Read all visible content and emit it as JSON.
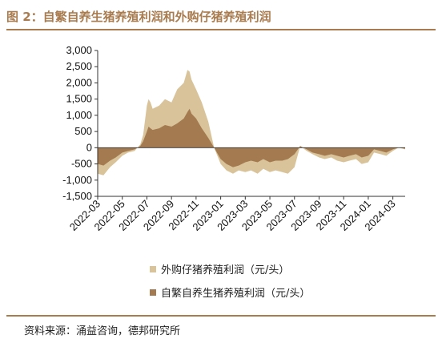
{
  "header": {
    "title": "图 2：自繁自养生猪养殖利润和外购仔猪养殖利润"
  },
  "footer": {
    "source": "资料来源：涌益咨询，德邦研究所"
  },
  "colors": {
    "accent": "#a97c50",
    "series_outsourced": "#d9c39a",
    "series_self": "#a47a50"
  },
  "chart_data": {
    "type": "area",
    "title": "",
    "xlabel": "",
    "ylabel": "",
    "ylim": [
      -1500,
      3000
    ],
    "yticks": [
      3000,
      2500,
      2000,
      1500,
      1000,
      500,
      0,
      -500,
      -1000,
      -1500
    ],
    "ytick_labels": [
      "3,000",
      "2,500",
      "2,000",
      "1,500",
      "1,000",
      "500",
      "0",
      "-500",
      "-1,000",
      "-1,500"
    ],
    "xlim": [
      "2022-03",
      "2024-04"
    ],
    "xticks": [
      "2022-03",
      "2022-05",
      "2022-07",
      "2022-09",
      "2022-11",
      "2023-01",
      "2023-03",
      "2023-05",
      "2023-07",
      "2023-09",
      "2023-11",
      "2024-01",
      "2024-03"
    ],
    "legend_position": "bottom",
    "grid": false,
    "series": [
      {
        "name": "外购仔猪养殖利润（元/头）",
        "x": [
          "2022-03-01",
          "2022-03-15",
          "2022-04-01",
          "2022-04-15",
          "2022-05-01",
          "2022-05-15",
          "2022-06-01",
          "2022-06-15",
          "2022-06-22",
          "2022-07-01",
          "2022-07-05",
          "2022-07-10",
          "2022-07-15",
          "2022-08-01",
          "2022-08-15",
          "2022-09-01",
          "2022-09-15",
          "2022-10-01",
          "2022-10-10",
          "2022-10-15",
          "2022-10-20",
          "2022-11-01",
          "2022-11-15",
          "2022-12-01",
          "2022-12-15",
          "2023-01-01",
          "2023-01-15",
          "2023-02-01",
          "2023-02-15",
          "2023-03-01",
          "2023-03-15",
          "2023-04-01",
          "2023-04-15",
          "2023-05-01",
          "2023-05-15",
          "2023-06-01",
          "2023-06-15",
          "2023-07-01",
          "2023-07-15",
          "2023-08-01",
          "2023-08-15",
          "2023-09-01",
          "2023-09-15",
          "2023-10-01",
          "2023-10-15",
          "2023-11-01",
          "2023-11-15",
          "2023-12-01",
          "2023-12-15",
          "2024-01-01",
          "2024-01-15",
          "2024-02-01",
          "2024-02-15",
          "2024-03-01",
          "2024-03-15",
          "2024-04-01"
        ],
        "values": [
          -800,
          -850,
          -600,
          -450,
          -250,
          -150,
          -100,
          100,
          400,
          1300,
          1500,
          1400,
          1200,
          1300,
          1500,
          1400,
          1800,
          2000,
          2400,
          2350,
          2100,
          1800,
          1400,
          800,
          0,
          -500,
          -700,
          -800,
          -700,
          -750,
          -700,
          -800,
          -650,
          -750,
          -700,
          -750,
          -800,
          -600,
          50,
          -100,
          -200,
          -300,
          -350,
          -300,
          -400,
          -450,
          -400,
          -350,
          -500,
          -450,
          -150,
          -200,
          -250,
          -100,
          0,
          -50
        ]
      },
      {
        "name": "自繁自养生猪养殖利润（元/头）",
        "x": [
          "2022-03-01",
          "2022-03-15",
          "2022-04-01",
          "2022-04-15",
          "2022-05-01",
          "2022-05-15",
          "2022-06-01",
          "2022-06-15",
          "2022-06-22",
          "2022-07-01",
          "2022-07-05",
          "2022-07-10",
          "2022-07-15",
          "2022-08-01",
          "2022-08-15",
          "2022-09-01",
          "2022-09-15",
          "2022-10-01",
          "2022-10-10",
          "2022-10-15",
          "2022-10-20",
          "2022-11-01",
          "2022-11-15",
          "2022-12-01",
          "2022-12-15",
          "2023-01-01",
          "2023-01-15",
          "2023-02-01",
          "2023-02-15",
          "2023-03-01",
          "2023-03-15",
          "2023-04-01",
          "2023-04-15",
          "2023-05-01",
          "2023-05-15",
          "2023-06-01",
          "2023-06-15",
          "2023-07-01",
          "2023-07-15",
          "2023-08-01",
          "2023-08-15",
          "2023-09-01",
          "2023-09-15",
          "2023-10-01",
          "2023-10-15",
          "2023-11-01",
          "2023-11-15",
          "2023-12-01",
          "2023-12-15",
          "2024-01-01",
          "2024-01-15",
          "2024-02-01",
          "2024-02-15",
          "2024-03-01",
          "2024-03-15",
          "2024-04-01"
        ],
        "values": [
          -500,
          -550,
          -400,
          -300,
          -150,
          -100,
          -50,
          50,
          200,
          500,
          650,
          600,
          550,
          600,
          700,
          650,
          750,
          900,
          1100,
          1200,
          1050,
          900,
          600,
          300,
          0,
          -350,
          -500,
          -600,
          -550,
          -450,
          -400,
          -450,
          -350,
          -450,
          -400,
          -400,
          -350,
          -200,
          50,
          -50,
          -150,
          -200,
          -250,
          -200,
          -250,
          -300,
          -250,
          -200,
          -300,
          -250,
          -50,
          -100,
          -150,
          -50,
          0,
          -30
        ]
      }
    ]
  }
}
